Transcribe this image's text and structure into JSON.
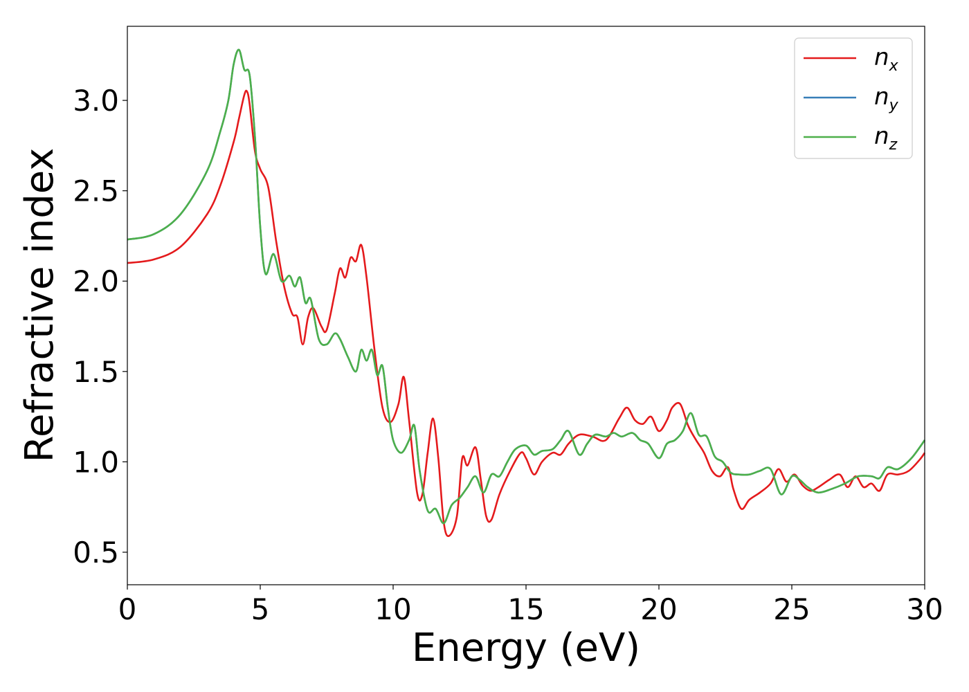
{
  "chart_data": {
    "type": "line",
    "xlabel": "Energy (eV)",
    "ylabel": "Refractive index",
    "xlim": [
      0,
      30
    ],
    "ylim": [
      0.32,
      3.41
    ],
    "xticks": [
      "0",
      "5",
      "10",
      "15",
      "20",
      "25",
      "30"
    ],
    "yticks": [
      "0.5",
      "1.0",
      "1.5",
      "2.0",
      "2.5",
      "3.0"
    ],
    "grid": false,
    "legend_position": "top-right",
    "series": [
      {
        "name": "n",
        "subscript": "x",
        "color": "#e41a1c",
        "points": [
          [
            0,
            2.1
          ],
          [
            1,
            2.12
          ],
          [
            2,
            2.19
          ],
          [
            3,
            2.37
          ],
          [
            3.5,
            2.53
          ],
          [
            4,
            2.77
          ],
          [
            4.2,
            2.9
          ],
          [
            4.4,
            3.03
          ],
          [
            4.5,
            3.05
          ],
          [
            4.6,
            2.98
          ],
          [
            4.8,
            2.72
          ],
          [
            5.0,
            2.62
          ],
          [
            5.3,
            2.52
          ],
          [
            5.6,
            2.22
          ],
          [
            5.9,
            1.97
          ],
          [
            6.2,
            1.82
          ],
          [
            6.4,
            1.8
          ],
          [
            6.6,
            1.65
          ],
          [
            6.8,
            1.8
          ],
          [
            7.0,
            1.85
          ],
          [
            7.3,
            1.75
          ],
          [
            7.5,
            1.73
          ],
          [
            7.8,
            1.93
          ],
          [
            8.0,
            2.07
          ],
          [
            8.2,
            2.02
          ],
          [
            8.4,
            2.13
          ],
          [
            8.6,
            2.11
          ],
          [
            8.8,
            2.2
          ],
          [
            9.0,
            2.02
          ],
          [
            9.3,
            1.62
          ],
          [
            9.6,
            1.3
          ],
          [
            9.9,
            1.22
          ],
          [
            10.2,
            1.32
          ],
          [
            10.4,
            1.47
          ],
          [
            10.6,
            1.23
          ],
          [
            10.9,
            0.83
          ],
          [
            11.1,
            0.82
          ],
          [
            11.3,
            1.05
          ],
          [
            11.5,
            1.24
          ],
          [
            11.7,
            1.02
          ],
          [
            11.9,
            0.67
          ],
          [
            12.1,
            0.59
          ],
          [
            12.4,
            0.7
          ],
          [
            12.6,
            1.02
          ],
          [
            12.8,
            0.98
          ],
          [
            13.1,
            1.08
          ],
          [
            13.3,
            0.9
          ],
          [
            13.5,
            0.7
          ],
          [
            13.7,
            0.68
          ],
          [
            14.0,
            0.82
          ],
          [
            14.4,
            0.95
          ],
          [
            14.8,
            1.05
          ],
          [
            15.0,
            1.02
          ],
          [
            15.3,
            0.93
          ],
          [
            15.6,
            1.0
          ],
          [
            16.0,
            1.05
          ],
          [
            16.3,
            1.04
          ],
          [
            16.6,
            1.1
          ],
          [
            17.0,
            1.15
          ],
          [
            17.5,
            1.14
          ],
          [
            18.0,
            1.12
          ],
          [
            18.5,
            1.24
          ],
          [
            18.8,
            1.3
          ],
          [
            19.1,
            1.23
          ],
          [
            19.4,
            1.21
          ],
          [
            19.7,
            1.25
          ],
          [
            20.0,
            1.17
          ],
          [
            20.3,
            1.23
          ],
          [
            20.5,
            1.3
          ],
          [
            20.8,
            1.32
          ],
          [
            21.1,
            1.2
          ],
          [
            21.4,
            1.12
          ],
          [
            21.7,
            1.05
          ],
          [
            22.0,
            0.95
          ],
          [
            22.3,
            0.92
          ],
          [
            22.6,
            0.97
          ],
          [
            22.8,
            0.85
          ],
          [
            23.1,
            0.74
          ],
          [
            23.4,
            0.79
          ],
          [
            23.8,
            0.83
          ],
          [
            24.2,
            0.88
          ],
          [
            24.5,
            0.96
          ],
          [
            24.8,
            0.89
          ],
          [
            25.1,
            0.93
          ],
          [
            25.4,
            0.87
          ],
          [
            25.7,
            0.84
          ],
          [
            26.0,
            0.86
          ],
          [
            26.4,
            0.9
          ],
          [
            26.8,
            0.93
          ],
          [
            27.1,
            0.86
          ],
          [
            27.4,
            0.92
          ],
          [
            27.7,
            0.86
          ],
          [
            28.0,
            0.88
          ],
          [
            28.3,
            0.84
          ],
          [
            28.6,
            0.93
          ],
          [
            29.0,
            0.93
          ],
          [
            29.4,
            0.95
          ],
          [
            29.8,
            1.01
          ],
          [
            30.0,
            1.05
          ]
        ]
      },
      {
        "name": "n",
        "subscript": "y",
        "color": "#377eb8",
        "points": [
          [
            0,
            2.23
          ],
          [
            1,
            2.26
          ],
          [
            2,
            2.37
          ],
          [
            3,
            2.61
          ],
          [
            3.5,
            2.83
          ],
          [
            3.8,
            3.0
          ],
          [
            4.0,
            3.2
          ],
          [
            4.2,
            3.28
          ],
          [
            4.4,
            3.17
          ],
          [
            4.6,
            3.14
          ],
          [
            4.8,
            2.8
          ],
          [
            5.0,
            2.3
          ],
          [
            5.2,
            2.04
          ],
          [
            5.5,
            2.15
          ],
          [
            5.8,
            2.0
          ],
          [
            6.1,
            2.03
          ],
          [
            6.3,
            1.97
          ],
          [
            6.5,
            2.02
          ],
          [
            6.7,
            1.88
          ],
          [
            6.9,
            1.9
          ],
          [
            7.2,
            1.68
          ],
          [
            7.5,
            1.65
          ],
          [
            7.8,
            1.71
          ],
          [
            8.0,
            1.68
          ],
          [
            8.3,
            1.58
          ],
          [
            8.6,
            1.5
          ],
          [
            8.8,
            1.62
          ],
          [
            9.0,
            1.56
          ],
          [
            9.2,
            1.62
          ],
          [
            9.4,
            1.48
          ],
          [
            9.6,
            1.53
          ],
          [
            9.8,
            1.3
          ],
          [
            10.0,
            1.12
          ],
          [
            10.3,
            1.05
          ],
          [
            10.6,
            1.12
          ],
          [
            10.8,
            1.2
          ],
          [
            11.0,
            0.95
          ],
          [
            11.3,
            0.73
          ],
          [
            11.6,
            0.74
          ],
          [
            11.9,
            0.66
          ],
          [
            12.2,
            0.76
          ],
          [
            12.5,
            0.8
          ],
          [
            12.8,
            0.86
          ],
          [
            13.1,
            0.92
          ],
          [
            13.4,
            0.83
          ],
          [
            13.7,
            0.93
          ],
          [
            14.0,
            0.92
          ],
          [
            14.3,
            1.0
          ],
          [
            14.6,
            1.07
          ],
          [
            15.0,
            1.09
          ],
          [
            15.3,
            1.04
          ],
          [
            15.6,
            1.06
          ],
          [
            16.0,
            1.07
          ],
          [
            16.3,
            1.12
          ],
          [
            16.6,
            1.17
          ],
          [
            17.0,
            1.04
          ],
          [
            17.3,
            1.1
          ],
          [
            17.6,
            1.15
          ],
          [
            18.0,
            1.14
          ],
          [
            18.3,
            1.16
          ],
          [
            18.6,
            1.14
          ],
          [
            19.0,
            1.16
          ],
          [
            19.3,
            1.12
          ],
          [
            19.6,
            1.1
          ],
          [
            20.0,
            1.02
          ],
          [
            20.3,
            1.1
          ],
          [
            20.6,
            1.12
          ],
          [
            20.9,
            1.17
          ],
          [
            21.2,
            1.27
          ],
          [
            21.5,
            1.15
          ],
          [
            21.8,
            1.14
          ],
          [
            22.1,
            1.03
          ],
          [
            22.4,
            1.0
          ],
          [
            22.7,
            0.94
          ],
          [
            23.0,
            0.93
          ],
          [
            23.4,
            0.93
          ],
          [
            23.8,
            0.95
          ],
          [
            24.2,
            0.96
          ],
          [
            24.6,
            0.82
          ],
          [
            25.0,
            0.92
          ],
          [
            25.3,
            0.9
          ],
          [
            25.6,
            0.86
          ],
          [
            26.0,
            0.83
          ],
          [
            26.5,
            0.85
          ],
          [
            27.0,
            0.88
          ],
          [
            27.5,
            0.92
          ],
          [
            28.0,
            0.92
          ],
          [
            28.3,
            0.91
          ],
          [
            28.6,
            0.97
          ],
          [
            29.0,
            0.96
          ],
          [
            29.5,
            1.02
          ],
          [
            30.0,
            1.12
          ]
        ]
      },
      {
        "name": "n",
        "subscript": "z",
        "color": "#4daf4a",
        "points": [
          [
            0,
            2.23
          ],
          [
            1,
            2.26
          ],
          [
            2,
            2.37
          ],
          [
            3,
            2.61
          ],
          [
            3.5,
            2.83
          ],
          [
            3.8,
            3.0
          ],
          [
            4.0,
            3.2
          ],
          [
            4.2,
            3.28
          ],
          [
            4.4,
            3.17
          ],
          [
            4.6,
            3.14
          ],
          [
            4.8,
            2.8
          ],
          [
            5.0,
            2.3
          ],
          [
            5.2,
            2.04
          ],
          [
            5.5,
            2.15
          ],
          [
            5.8,
            2.0
          ],
          [
            6.1,
            2.03
          ],
          [
            6.3,
            1.97
          ],
          [
            6.5,
            2.02
          ],
          [
            6.7,
            1.88
          ],
          [
            6.9,
            1.9
          ],
          [
            7.2,
            1.68
          ],
          [
            7.5,
            1.65
          ],
          [
            7.8,
            1.71
          ],
          [
            8.0,
            1.68
          ],
          [
            8.3,
            1.58
          ],
          [
            8.6,
            1.5
          ],
          [
            8.8,
            1.62
          ],
          [
            9.0,
            1.56
          ],
          [
            9.2,
            1.62
          ],
          [
            9.4,
            1.48
          ],
          [
            9.6,
            1.53
          ],
          [
            9.8,
            1.3
          ],
          [
            10.0,
            1.12
          ],
          [
            10.3,
            1.05
          ],
          [
            10.6,
            1.12
          ],
          [
            10.8,
            1.2
          ],
          [
            11.0,
            0.95
          ],
          [
            11.3,
            0.73
          ],
          [
            11.6,
            0.74
          ],
          [
            11.9,
            0.66
          ],
          [
            12.2,
            0.76
          ],
          [
            12.5,
            0.8
          ],
          [
            12.8,
            0.86
          ],
          [
            13.1,
            0.92
          ],
          [
            13.4,
            0.83
          ],
          [
            13.7,
            0.93
          ],
          [
            14.0,
            0.92
          ],
          [
            14.3,
            1.0
          ],
          [
            14.6,
            1.07
          ],
          [
            15.0,
            1.09
          ],
          [
            15.3,
            1.04
          ],
          [
            15.6,
            1.06
          ],
          [
            16.0,
            1.07
          ],
          [
            16.3,
            1.12
          ],
          [
            16.6,
            1.17
          ],
          [
            17.0,
            1.04
          ],
          [
            17.3,
            1.1
          ],
          [
            17.6,
            1.15
          ],
          [
            18.0,
            1.14
          ],
          [
            18.3,
            1.16
          ],
          [
            18.6,
            1.14
          ],
          [
            19.0,
            1.16
          ],
          [
            19.3,
            1.12
          ],
          [
            19.6,
            1.1
          ],
          [
            20.0,
            1.02
          ],
          [
            20.3,
            1.1
          ],
          [
            20.6,
            1.12
          ],
          [
            20.9,
            1.17
          ],
          [
            21.2,
            1.27
          ],
          [
            21.5,
            1.15
          ],
          [
            21.8,
            1.14
          ],
          [
            22.1,
            1.03
          ],
          [
            22.4,
            1.0
          ],
          [
            22.7,
            0.94
          ],
          [
            23.0,
            0.93
          ],
          [
            23.4,
            0.93
          ],
          [
            23.8,
            0.95
          ],
          [
            24.2,
            0.96
          ],
          [
            24.6,
            0.82
          ],
          [
            25.0,
            0.92
          ],
          [
            25.3,
            0.9
          ],
          [
            25.6,
            0.86
          ],
          [
            26.0,
            0.83
          ],
          [
            26.5,
            0.85
          ],
          [
            27.0,
            0.88
          ],
          [
            27.5,
            0.92
          ],
          [
            28.0,
            0.92
          ],
          [
            28.3,
            0.91
          ],
          [
            28.6,
            0.97
          ],
          [
            29.0,
            0.96
          ],
          [
            29.5,
            1.02
          ],
          [
            30.0,
            1.12
          ]
        ]
      }
    ]
  }
}
